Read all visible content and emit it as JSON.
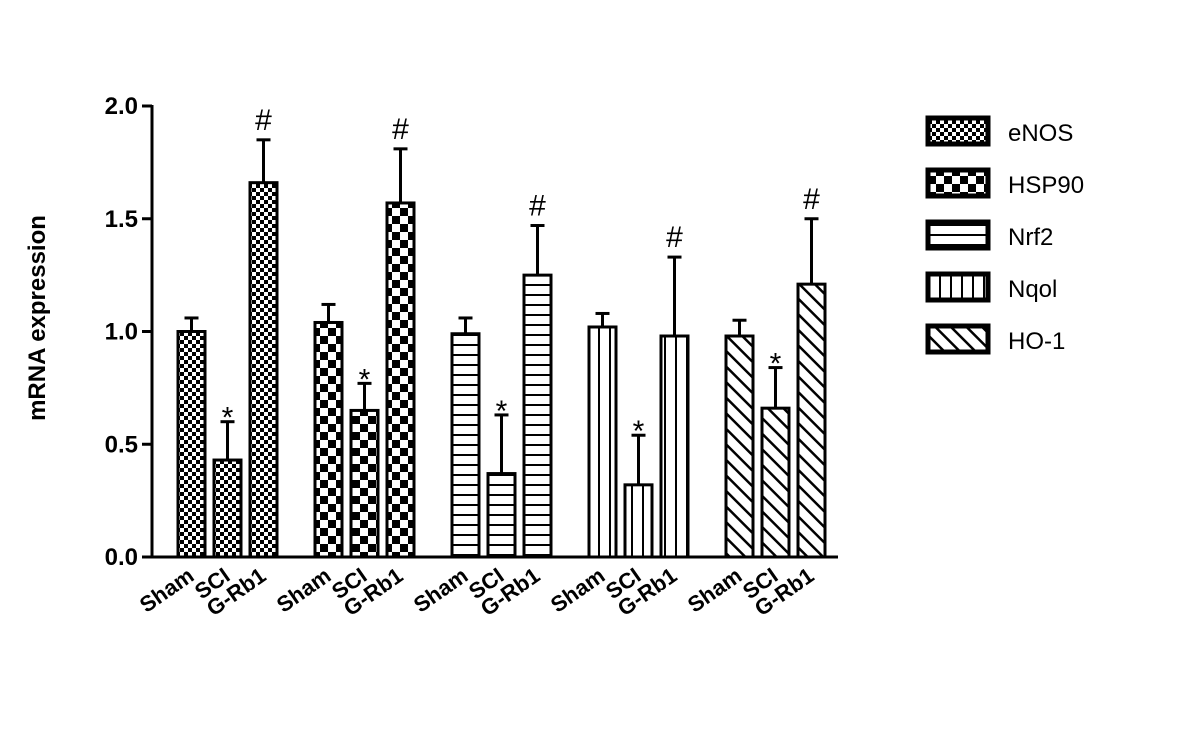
{
  "chart_data": {
    "type": "bar",
    "ylabel": "mRNA expression",
    "xlabel": "",
    "ylim": [
      0,
      2.0
    ],
    "yticks": [
      "0.0",
      "0.5",
      "1.0",
      "1.5",
      "2.0"
    ],
    "categories": [
      "Sham",
      "SCI",
      "G-Rb1"
    ],
    "legend_position": "right",
    "series": [
      {
        "name": "eNOS",
        "pattern": "fine-check",
        "values": [
          1.0,
          0.43,
          1.66
        ],
        "errors": [
          0.06,
          0.17,
          0.19
        ],
        "marks": [
          "",
          "*",
          "#"
        ]
      },
      {
        "name": "HSP90",
        "pattern": "coarse-check",
        "values": [
          1.04,
          0.65,
          1.57
        ],
        "errors": [
          0.08,
          0.12,
          0.24
        ],
        "marks": [
          "",
          "*",
          "#"
        ]
      },
      {
        "name": "Nrf2",
        "pattern": "horizontal",
        "values": [
          0.99,
          0.37,
          1.25
        ],
        "errors": [
          0.07,
          0.26,
          0.22
        ],
        "marks": [
          "",
          "*",
          "#"
        ]
      },
      {
        "name": "Nqol",
        "pattern": "vertical",
        "values": [
          1.02,
          0.32,
          0.98
        ],
        "errors": [
          0.06,
          0.22,
          0.35
        ],
        "marks": [
          "",
          "*",
          "#"
        ]
      },
      {
        "name": "HO-1",
        "pattern": "diagonal",
        "values": [
          0.98,
          0.66,
          1.21
        ],
        "errors": [
          0.07,
          0.18,
          0.29
        ],
        "marks": [
          "",
          "*",
          "#"
        ]
      }
    ]
  }
}
